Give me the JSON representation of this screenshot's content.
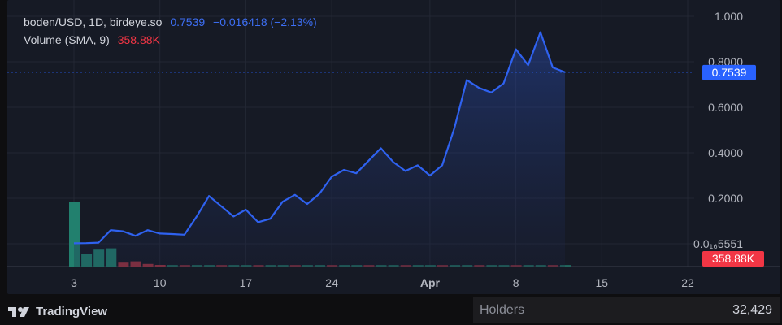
{
  "legend": {
    "symbol": "boden/USD, 1D, birdeye.so",
    "price": "0.7539",
    "change": "−0.016418 (−2.13%)",
    "volume_label": "Volume (SMA, 9)",
    "volume_value": "358.88K"
  },
  "price_badge": "0.7539",
  "volume_badge": "358.88K",
  "footer": {
    "brand": "TradingView",
    "holders_label": "Holders",
    "holders_value": "32,429"
  },
  "colors": {
    "line": "#2f62f0",
    "up": "#22806e",
    "down": "#9b3341",
    "badge_price": "#2962ff",
    "badge_volume": "#f23645"
  },
  "chart_data": {
    "type": "area",
    "price_series": {
      "x": [
        "Mar 3",
        "Mar 4",
        "Mar 5",
        "Mar 6",
        "Mar 7",
        "Mar 8",
        "Mar 9",
        "Mar 10",
        "Mar 11",
        "Mar 12",
        "Mar 13",
        "Mar 14",
        "Mar 15",
        "Mar 16",
        "Mar 17",
        "Mar 18",
        "Mar 19",
        "Mar 20",
        "Mar 21",
        "Mar 22",
        "Mar 23",
        "Mar 24",
        "Mar 25",
        "Mar 26",
        "Mar 27",
        "Mar 28",
        "Mar 29",
        "Mar 30",
        "Mar 31",
        "Apr 1",
        "Apr 2",
        "Apr 3",
        "Apr 4",
        "Apr 5",
        "Apr 6",
        "Apr 7",
        "Apr 8",
        "Apr 9",
        "Apr 10",
        "Apr 11",
        "Apr 12"
      ],
      "values": [
        0.002,
        0.003,
        0.005,
        0.06,
        0.055,
        0.035,
        0.06,
        0.045,
        0.043,
        0.04,
        0.12,
        0.21,
        0.165,
        0.12,
        0.15,
        0.095,
        0.11,
        0.185,
        0.215,
        0.175,
        0.22,
        0.295,
        0.325,
        0.31,
        0.365,
        0.42,
        0.36,
        0.32,
        0.345,
        0.3,
        0.345,
        0.51,
        0.72,
        0.685,
        0.665,
        0.705,
        0.855,
        0.785,
        0.93,
        0.775,
        0.7539
      ]
    },
    "volume_series": {
      "x": [
        "Mar 3",
        "Mar 4",
        "Mar 5",
        "Mar 6",
        "Mar 7",
        "Mar 8",
        "Mar 9",
        "Mar 10"
      ],
      "directions": [
        "up",
        "up",
        "up",
        "up",
        "down",
        "down",
        "down",
        "down"
      ],
      "relative_heights": [
        1.0,
        0.2,
        0.26,
        0.28,
        0.06,
        0.08,
        0.04,
        0.02
      ]
    },
    "x_ticks": [
      "3",
      "10",
      "17",
      "24",
      "Apr",
      "8",
      "15",
      "22"
    ],
    "y_ticks": [
      "1.000",
      "0.8000",
      "0.6000",
      "0.4000",
      "0.2000",
      "0.0₁₆5551"
    ],
    "ylim": [
      0,
      1.0
    ],
    "grid": true
  }
}
